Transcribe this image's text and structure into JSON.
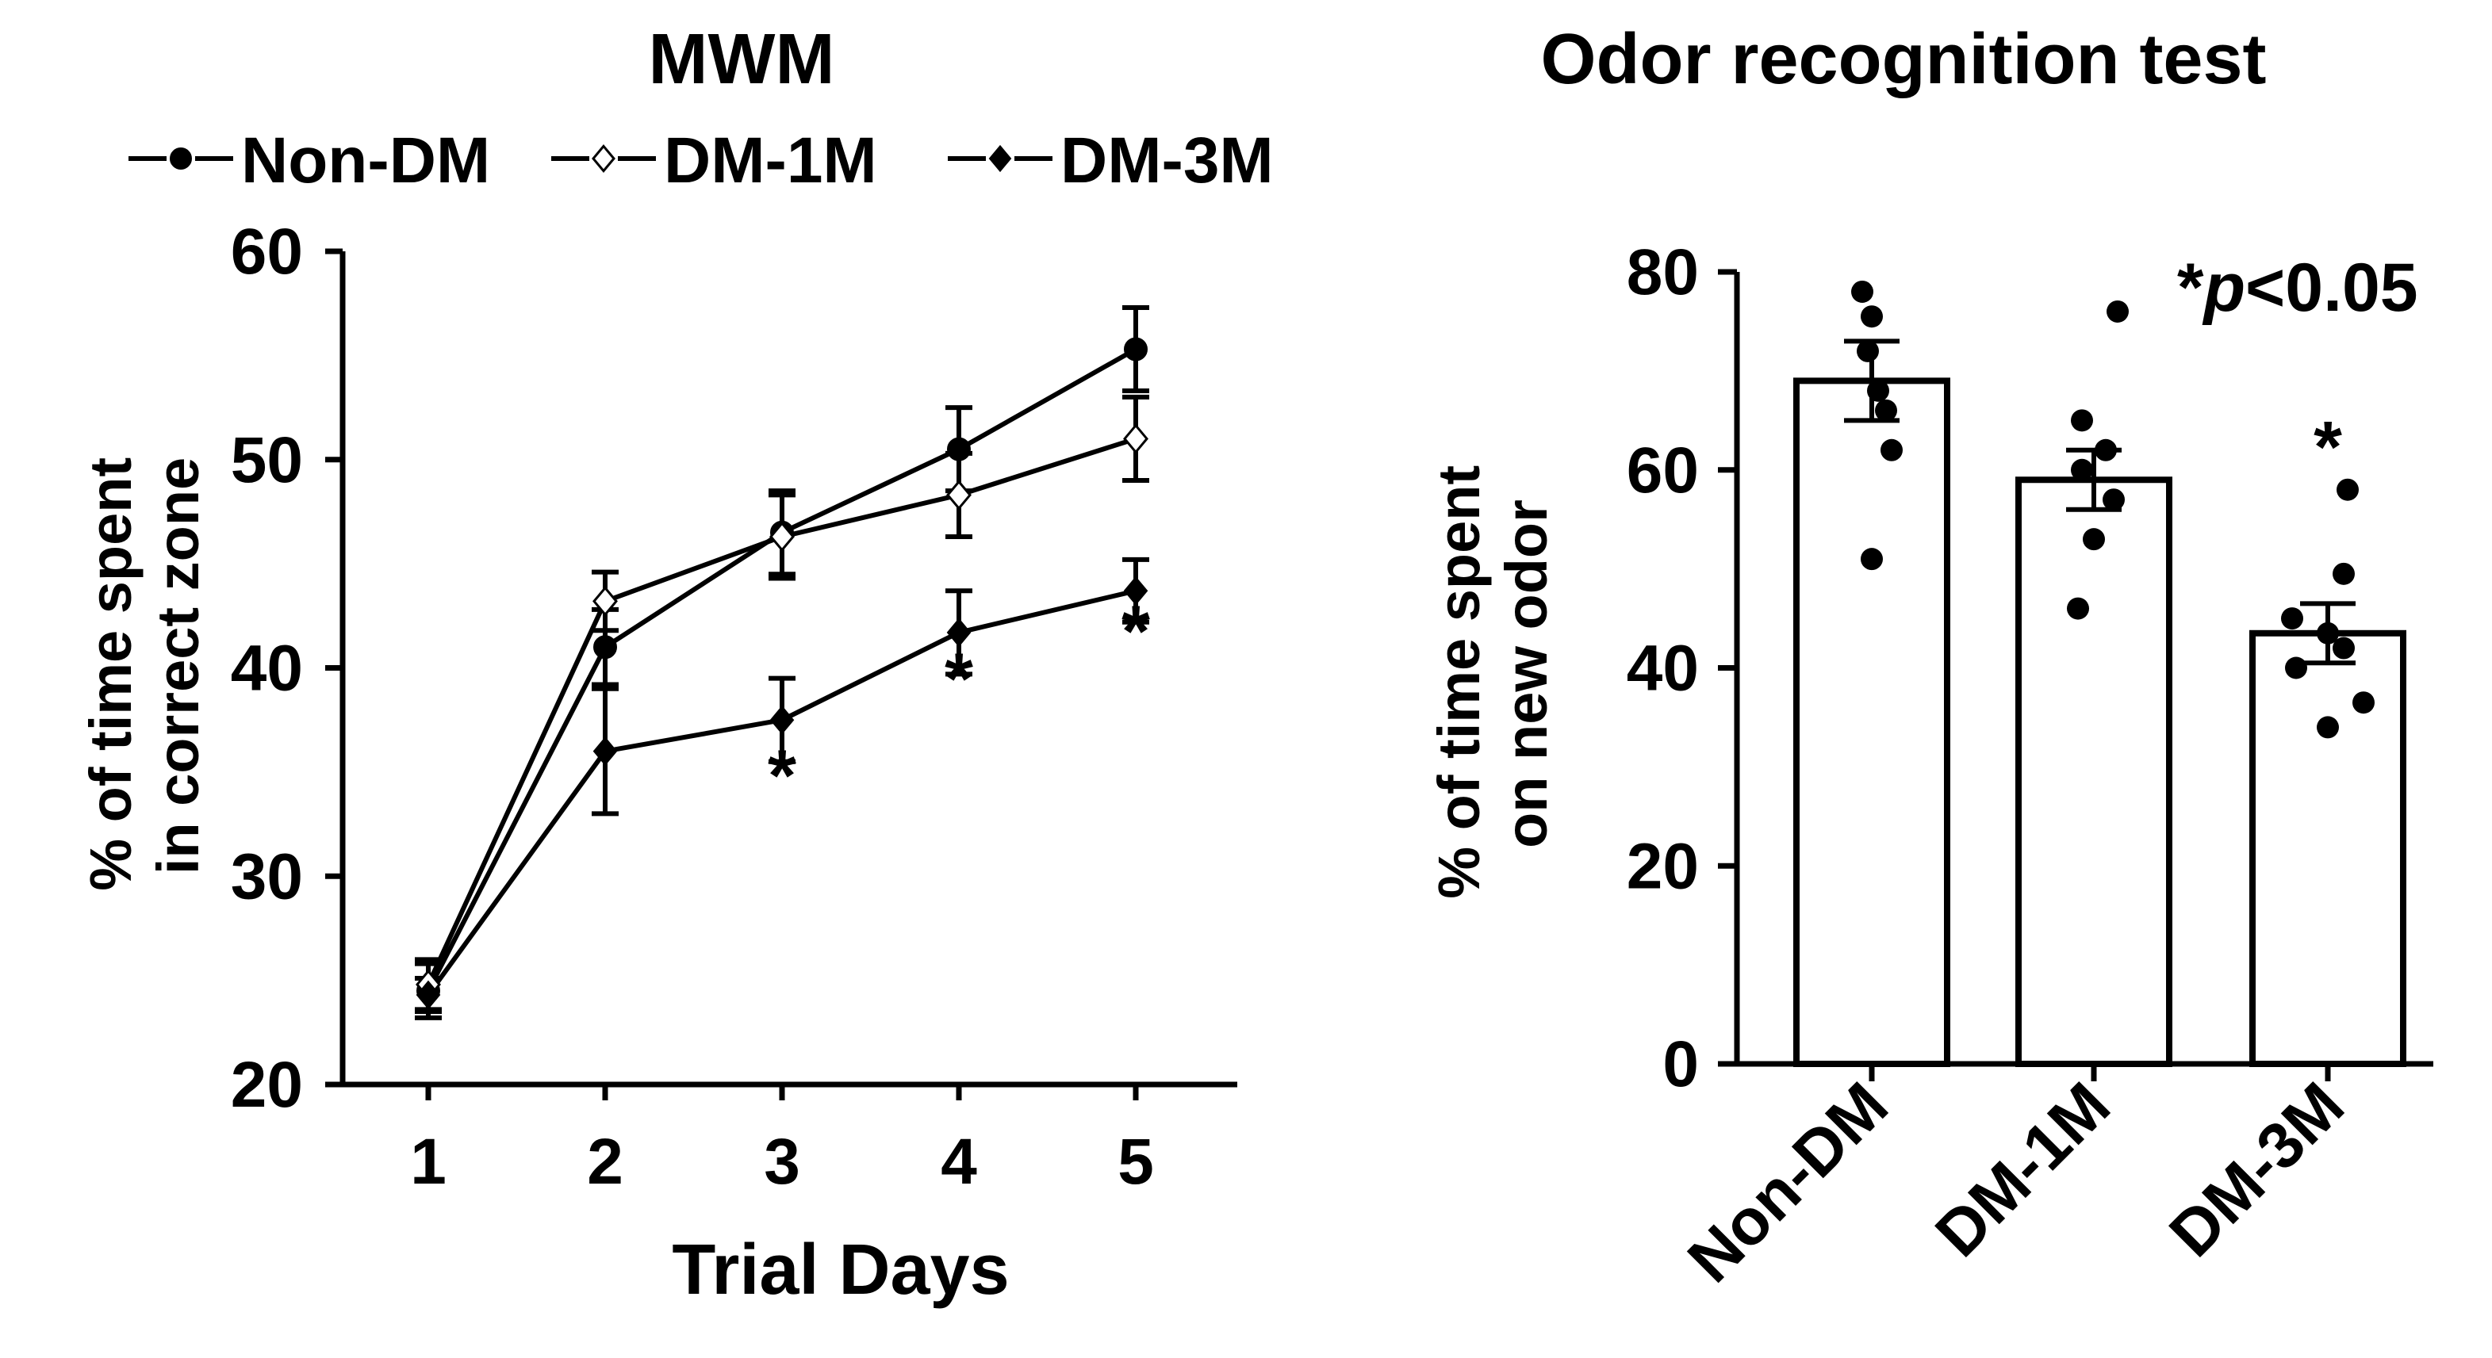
{
  "chart_data": [
    {
      "type": "line",
      "title": "MWM",
      "xlabel": "Trial Days",
      "ylabel": [
        "% of time spent",
        "in correct zone"
      ],
      "ylim": [
        20,
        60
      ],
      "yticks": [
        20,
        30,
        40,
        50,
        60
      ],
      "x": [
        1,
        2,
        3,
        4,
        5
      ],
      "series": [
        {
          "name": "Non-DM",
          "marker": "filled-circle",
          "values": [
            24.5,
            41.0,
            46.5,
            50.5,
            55.3
          ],
          "errors": [
            1.3,
            1.8,
            2.0,
            2.0,
            2.0
          ]
        },
        {
          "name": "DM-1M",
          "marker": "open-diamond",
          "values": [
            24.8,
            43.2,
            46.3,
            48.3,
            51.0
          ],
          "errors": [
            1.2,
            1.4,
            2.0,
            2.0,
            2.0
          ]
        },
        {
          "name": "DM-3M",
          "marker": "filled-diamond",
          "values": [
            24.3,
            36.0,
            37.5,
            41.7,
            43.7
          ],
          "errors": [
            0.8,
            3.0,
            2.0,
            2.0,
            1.5
          ]
        }
      ],
      "annotations": [
        {
          "x": 3,
          "text": "*"
        },
        {
          "x": 4,
          "text": "*"
        },
        {
          "x": 5,
          "text": "*"
        }
      ],
      "legend": "top"
    },
    {
      "type": "bar",
      "title": "Odor recognition test",
      "xlabel": "",
      "ylabel": [
        "% of time spent",
        "on new odor"
      ],
      "ylim": [
        0,
        80
      ],
      "yticks": [
        0,
        20,
        40,
        60,
        80
      ],
      "categories": [
        "Non-DM",
        "DM-1M",
        "DM-3M"
      ],
      "values": [
        69,
        59,
        43.5
      ],
      "errors": [
        4,
        3,
        3
      ],
      "points": [
        [
          78,
          75.5,
          72,
          68,
          66,
          62,
          51
        ],
        [
          76,
          65,
          62,
          60,
          57,
          53,
          46
        ],
        [
          58,
          49.5,
          45,
          43.5,
          42,
          40,
          36.5,
          34
        ]
      ],
      "annotation": {
        "category": "DM-3M",
        "text": "*"
      },
      "significance_note": {
        "star": "*",
        "italic": "p",
        "rest": "<0.05"
      }
    }
  ]
}
